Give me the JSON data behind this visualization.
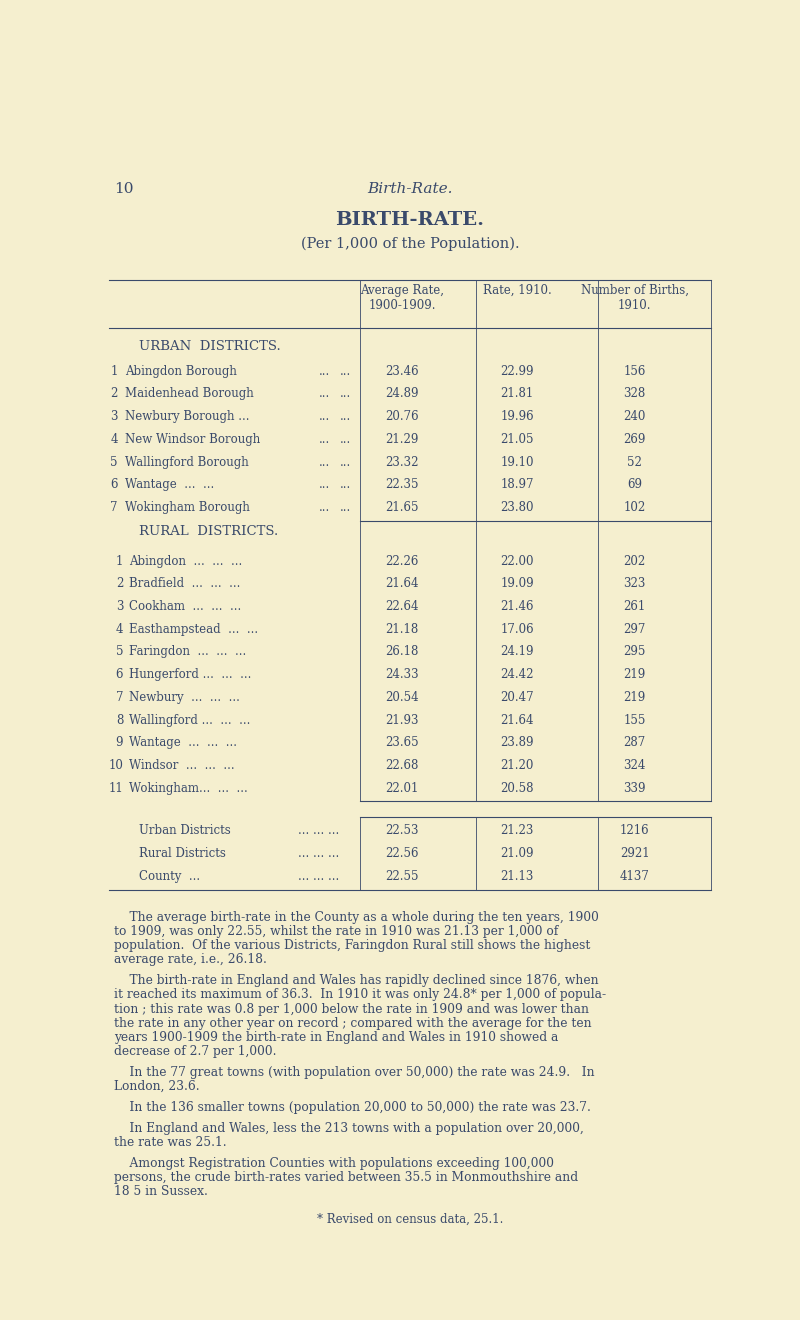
{
  "bg_color": "#f5efcf",
  "text_color": "#3a4a6b",
  "page_number": "10",
  "page_header": "Birth-Rate.",
  "title": "BIRTH-RATE.",
  "subtitle": "(Per 1,000 of the Population).",
  "col_headers": [
    "Average Rate,\n1900-1909.",
    "Rate, 1910.",
    "Number of Births,\n1910."
  ],
  "urban_section": "URBAN  DISTRICTS.",
  "urban_rows": [
    [
      "1",
      "Abingdon Borough",
      "23.46",
      "22.99",
      "156"
    ],
    [
      "2",
      "Maidenhead Borough",
      "24.89",
      "21.81",
      "328"
    ],
    [
      "3",
      "Newbury Borough ...",
      "20.76",
      "19.96",
      "240"
    ],
    [
      "4",
      "New Windsor Borough",
      "21.29",
      "21.05",
      "269"
    ],
    [
      "5",
      "Wallingford Borough",
      "23.32",
      "19.10",
      "52"
    ],
    [
      "6",
      "Wantage  ...  ...",
      "22.35",
      "18.97",
      "69"
    ],
    [
      "7",
      "Wokingham Borough",
      "21.65",
      "23.80",
      "102"
    ]
  ],
  "rural_section": "RURAL  DISTRICTS.",
  "rural_rows": [
    [
      "1",
      "Abingdon  ...  ...  ...",
      "22.26",
      "22.00",
      "202"
    ],
    [
      "2",
      "Bradfield  ...  ...  ...",
      "21.64",
      "19.09",
      "323"
    ],
    [
      "3",
      "Cookham  ...  ...  ...",
      "22.64",
      "21.46",
      "261"
    ],
    [
      "4",
      "Easthampstead  ...  ...",
      "21.18",
      "17.06",
      "297"
    ],
    [
      "5",
      "Faringdon  ...  ...  ...",
      "26.18",
      "24.19",
      "295"
    ],
    [
      "6",
      "Hungerford ...  ...  ...",
      "24.33",
      "24.42",
      "219"
    ],
    [
      "7",
      "Newbury  ...  ...  ...",
      "20.54",
      "20.47",
      "219"
    ],
    [
      "8",
      "Wallingford ...  ...  ...",
      "21.93",
      "21.64",
      "155"
    ],
    [
      "9",
      "Wantage  ...  ...  ...",
      "23.65",
      "23.89",
      "287"
    ],
    [
      "10",
      "Windsor  ...  ...  ...",
      "22.68",
      "21.20",
      "324"
    ],
    [
      "11",
      "Wokingham...  ...  ...",
      "22.01",
      "20.58",
      "339"
    ]
  ],
  "summary_rows": [
    [
      "Urban Districts",
      "... ... ...",
      "22.53",
      "21.23",
      "1216"
    ],
    [
      "Rural Districts",
      "... ... ...",
      "22.56",
      "21.09",
      "2921"
    ],
    [
      "County  ...",
      "... ... ...",
      "22.55",
      "21.13",
      "4137"
    ]
  ],
  "body_paragraphs": [
    "    The average birth-rate in the County as a whole during the ten years, 1900\nto 1909, was only 22.55, whilst the rate in 1910 was 21.13 per 1,000 of\npopulation.  Of the various Districts, Faringdon Rural still shows the highest\naverage rate, i.e., 26.18.",
    "    The birth-rate in England and Wales has rapidly declined since 1876, when\nit reached its maximum of 36.3.  In 1910 it was only 24.8* per 1,000 of popula-\ntion ; this rate was 0.8 per 1,000 below the rate in 1909 and was lower than\nthe rate in any other year on record ; compared with the average for the ten\nyears 1900-1909 the birth-rate in England and Wales in 1910 showed a\ndecrease of 2.7 per 1,000.",
    "    In the 77 great towns (with population over 50,000) the rate was 24.9.   In\nLondon, 23.6.",
    "    In the 136 smaller towns (population 20,000 to 50,000) the rate was 23.7.",
    "    In England and Wales, less the 213 towns with a population over 20,000,\nthe rate was 25.1.",
    "    Amongst Registration Counties with populations exceeding 100,000\npersons, the crude birth-rates varied between 35.5 in Monmouthshire and\n18 5 in Sussex."
  ],
  "footnote": "* Revised on census data, 25.1."
}
